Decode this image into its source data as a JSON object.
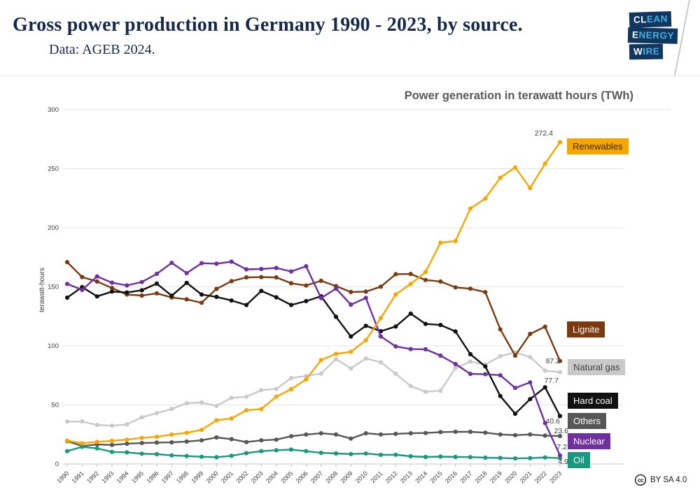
{
  "header": {
    "title": "Gross power production in Germany 1990 - 2023, by source.",
    "subtitle": "Data: AGEB 2024.",
    "logo": {
      "line1_strong": "CL",
      "line1_rest": "EAN",
      "line2_strong": "E",
      "line2_rest": "NERGY",
      "line3_strong": "W",
      "line3_rest": "IRE"
    }
  },
  "chart": {
    "heading": "Power generation in terawatt hours (TWh)",
    "y_axis_label": "terawatt-hours"
  },
  "chart_data": {
    "type": "line",
    "title": "Power generation in terawatt hours (TWh)",
    "ylabel": "terawatt-hours",
    "ylim": [
      0,
      300
    ],
    "y_ticks": [
      0,
      50,
      100,
      150,
      200,
      250,
      300
    ],
    "grid": "horizontal",
    "legend_position": "right-of-line-ends",
    "x": [
      1990,
      1991,
      1992,
      1993,
      1994,
      1995,
      1996,
      1997,
      1998,
      1999,
      2000,
      2001,
      2002,
      2003,
      2004,
      2005,
      2006,
      2007,
      2008,
      2009,
      2010,
      2011,
      2012,
      2013,
      2014,
      2015,
      2016,
      2017,
      2018,
      2019,
      2020,
      2021,
      2022,
      2023
    ],
    "series": [
      {
        "name": "renewables",
        "label": "Renewables",
        "color": "#f7a600",
        "label_text_color": "#3a2a00",
        "end_label": "272.4",
        "values": [
          19.7,
          17.5,
          18.7,
          19.6,
          20.6,
          22.0,
          23.0,
          24.9,
          26.4,
          28.9,
          37.0,
          38.5,
          45.5,
          46.5,
          57.0,
          63.3,
          71.6,
          88.0,
          93.2,
          95.0,
          104.8,
          123.5,
          143.5,
          152.4,
          162.5,
          187.4,
          188.8,
          216.3,
          224.8,
          242.4,
          251.1,
          233.6,
          254.4,
          272.4
        ]
      },
      {
        "name": "lignite",
        "label": "Lignite",
        "color": "#7b3b10",
        "label_text_color": "#ffffff",
        "end_label": "87.2",
        "values": [
          170.9,
          158.3,
          154.5,
          149.0,
          143.5,
          142.6,
          144.5,
          141.0,
          139.4,
          136.5,
          148.3,
          154.8,
          158.0,
          158.2,
          158.0,
          153.0,
          151.1,
          155.1,
          150.6,
          145.6,
          145.9,
          150.1,
          160.7,
          160.9,
          155.8,
          154.5,
          149.5,
          148.4,
          145.5,
          114.0,
          91.7,
          110.1,
          116.2,
          87.2
        ]
      },
      {
        "name": "natural-gas",
        "label": "Natural gas",
        "color": "#c9c9c9",
        "label_text_color": "#3f3f3f",
        "end_label": "77.7",
        "values": [
          35.9,
          36.0,
          33.0,
          32.4,
          33.5,
          39.5,
          43.0,
          46.5,
          51.4,
          52.0,
          49.2,
          55.9,
          56.9,
          62.5,
          63.5,
          72.7,
          74.5,
          76.5,
          88.9,
          80.9,
          89.3,
          86.1,
          76.4,
          66.0,
          61.1,
          62.0,
          81.3,
          86.7,
          84.0,
          91.3,
          94.5,
          90.5,
          79.0,
          77.7
        ]
      },
      {
        "name": "hard-coal",
        "label": "Hard coal",
        "color": "#111111",
        "label_text_color": "#ffffff",
        "end_label": "40.6",
        "values": [
          140.8,
          149.8,
          141.9,
          146.0,
          145.2,
          147.1,
          152.7,
          142.5,
          153.4,
          143.5,
          141.5,
          138.4,
          134.6,
          146.5,
          141.1,
          134.6,
          137.9,
          142.0,
          124.6,
          107.9,
          117.0,
          112.4,
          116.4,
          127.3,
          118.6,
          117.7,
          112.2,
          92.9,
          82.6,
          57.5,
          42.5,
          54.9,
          64.9,
          40.6
        ]
      },
      {
        "name": "others",
        "label": "Others",
        "color": "#575757",
        "label_text_color": "#ffffff",
        "end_label": "23.6",
        "values": [
          19.3,
          15.2,
          16.5,
          16.1,
          17.1,
          17.7,
          18.1,
          18.3,
          19.0,
          20.0,
          22.5,
          21.0,
          18.5,
          20.0,
          20.6,
          23.5,
          24.9,
          26.0,
          25.0,
          21.5,
          26.0,
          25.0,
          25.5,
          26.0,
          26.2,
          27.0,
          27.3,
          27.2,
          26.5,
          25.0,
          24.4,
          25.0,
          24.0,
          23.6
        ]
      },
      {
        "name": "nuclear",
        "label": "Nuclear",
        "color": "#7030a0",
        "label_text_color": "#ffffff",
        "end_label": "7.2",
        "values": [
          152.5,
          147.4,
          158.8,
          153.5,
          151.2,
          154.1,
          161.0,
          170.3,
          161.6,
          170.0,
          169.6,
          171.3,
          164.8,
          165.1,
          166.0,
          163.0,
          167.4,
          140.5,
          148.5,
          134.9,
          140.6,
          108.0,
          99.5,
          97.3,
          97.1,
          91.8,
          84.6,
          76.3,
          76.0,
          75.1,
          64.4,
          69.1,
          34.7,
          7.2
        ]
      },
      {
        "name": "oil",
        "label": "Oil",
        "color": "#17997f",
        "label_text_color": "#ffffff",
        "end_label": "4.9",
        "values": [
          10.8,
          14.5,
          13.2,
          10.2,
          9.8,
          8.7,
          8.3,
          7.3,
          6.7,
          6.1,
          5.7,
          6.9,
          9.2,
          10.8,
          11.6,
          12.2,
          10.8,
          9.4,
          8.9,
          8.4,
          8.8,
          7.7,
          7.8,
          6.5,
          5.9,
          6.2,
          5.9,
          5.8,
          5.3,
          5.1,
          4.7,
          4.9,
          5.5,
          4.9
        ]
      }
    ]
  },
  "footer": {
    "cc_icon": "cc",
    "license": "BY SA 4.0"
  }
}
